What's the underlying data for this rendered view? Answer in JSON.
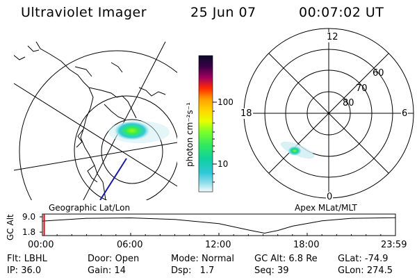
{
  "header": {
    "title": "Ultraviolet Imager",
    "date": "25 Jun 07",
    "time": "00:07:02 UT"
  },
  "geo_panel": {
    "label": "Geographic Lat/Lon"
  },
  "colorbar": {
    "unit_label": "photon cm⁻²s⁻¹",
    "ticks": [
      "100",
      "10"
    ],
    "colors": [
      "#0a0a2a",
      "#3a0046",
      "#6a0070",
      "#a00060",
      "#d0002a",
      "#ff2a00",
      "#ff6a00",
      "#ffa000",
      "#ffd400",
      "#e8ff00",
      "#b8ff00",
      "#7aff2a",
      "#30e860",
      "#10d0a0",
      "#30c8d8",
      "#8adce8",
      "#cfeef2",
      "#ffffff"
    ]
  },
  "mag_panel": {
    "label": "Apex MLat/MLT",
    "mlt_labels": [
      "12",
      "18",
      "6",
      "0"
    ],
    "lat_labels": [
      "60",
      "70",
      "80"
    ]
  },
  "altitude_plot": {
    "ylabel": "GC Alt",
    "yticks": [
      "9.0",
      "1.8"
    ],
    "xticks": [
      "00:00",
      "06:00",
      "12:00",
      "18:00",
      "23:59"
    ],
    "series": [
      {
        "t_hours": 0.0,
        "alt_re": 7.0
      },
      {
        "t_hours": 3.0,
        "alt_re": 8.3
      },
      {
        "t_hours": 6.0,
        "alt_re": 8.5
      },
      {
        "t_hours": 9.0,
        "alt_re": 7.8
      },
      {
        "t_hours": 12.0,
        "alt_re": 5.8
      },
      {
        "t_hours": 14.0,
        "alt_re": 2.8
      },
      {
        "t_hours": 15.1,
        "alt_re": 1.3
      },
      {
        "t_hours": 16.0,
        "alt_re": 2.6
      },
      {
        "t_hours": 17.0,
        "alt_re": 4.6
      },
      {
        "t_hours": 19.0,
        "alt_re": 7.1
      },
      {
        "t_hours": 21.0,
        "alt_re": 8.3
      },
      {
        "t_hours": 23.99,
        "alt_re": 8.6
      }
    ],
    "marker_hours": 0.12
  },
  "status": {
    "row1": [
      {
        "label": "Flt:",
        "value": "LBHL"
      },
      {
        "label": "Door:",
        "value": "Open"
      },
      {
        "label": "Mode:",
        "value": "Normal"
      },
      {
        "label": "GC Alt:",
        "value": "6.8 Re"
      },
      {
        "label": "GLat:",
        "value": "-74.9"
      }
    ],
    "row2": [
      {
        "label": "IP:",
        "value": "36.0"
      },
      {
        "label": "Gain:",
        "value": "14"
      },
      {
        "label": "Dsp:",
        "value": "1.7"
      },
      {
        "label": "Seq:",
        "value": "39"
      },
      {
        "label": "GLon:",
        "value": "274.5"
      }
    ]
  },
  "colors": {
    "foreground": "#000000",
    "background": "#ffffff",
    "track": "#1a1aa0",
    "marker": "#e00000"
  }
}
